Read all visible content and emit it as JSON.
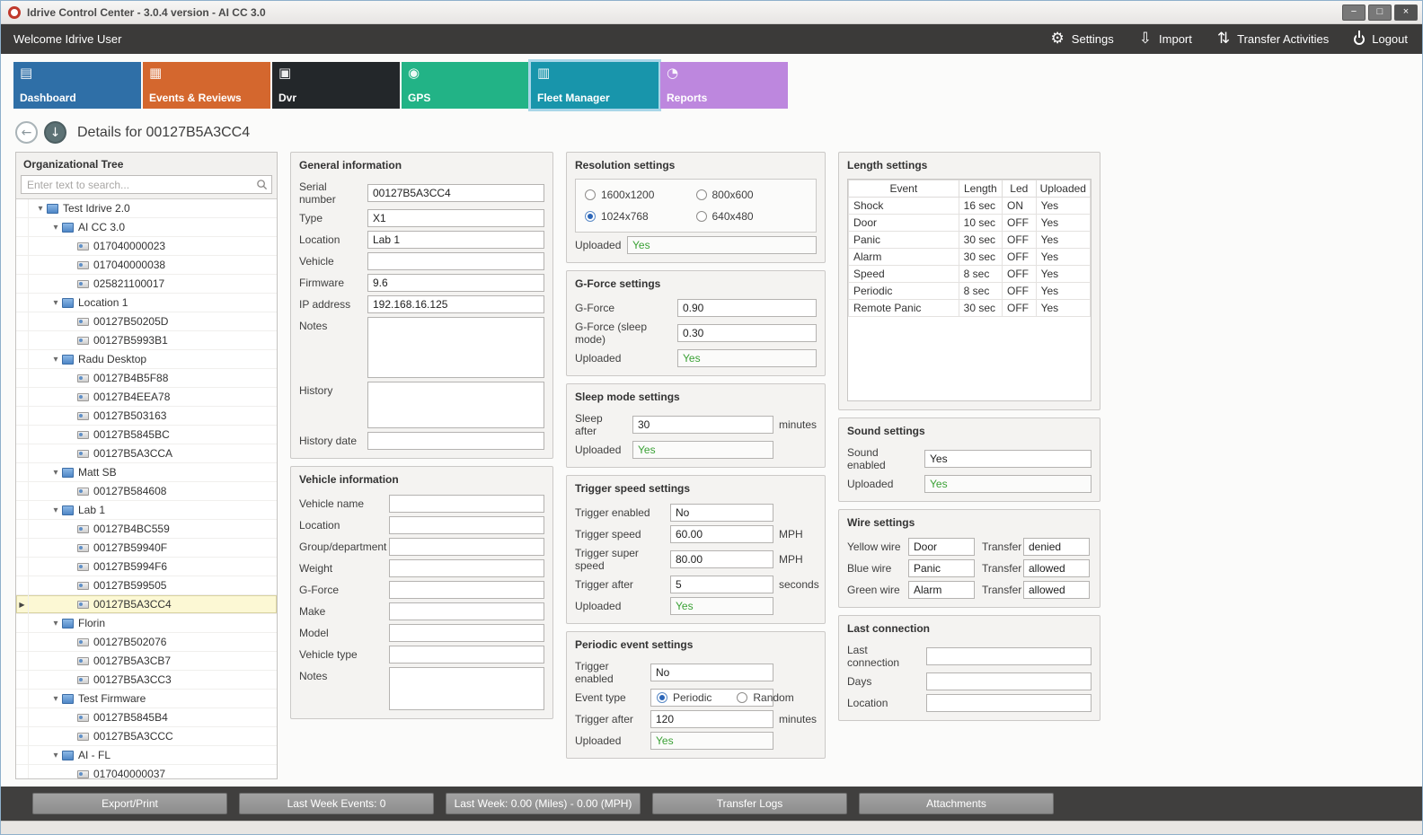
{
  "window": {
    "title": "Idrive Control Center - 3.0.4 version - AI CC 3.0",
    "controls": [
      "minimize",
      "maximize",
      "close"
    ]
  },
  "toolbar": {
    "welcome": "Welcome Idrive User",
    "actions": [
      {
        "label": "Settings",
        "icon": "settings-gears-icon"
      },
      {
        "label": "Import",
        "icon": "import-icon"
      },
      {
        "label": "Transfer Activities",
        "icon": "transfer-activities-icon"
      },
      {
        "label": "Logout",
        "icon": "logout-power-icon"
      }
    ]
  },
  "nav": {
    "tiles": [
      {
        "label": "Dashboard",
        "icon": "dashboard-icon",
        "color": "#2f6fa7",
        "selected": false
      },
      {
        "label": "Events & Reviews",
        "icon": "events-reviews-icon",
        "color": "#d4672e",
        "selected": false
      },
      {
        "label": "Dvr",
        "icon": "dvr-icon",
        "color": "#23272a",
        "selected": false
      },
      {
        "label": "GPS",
        "icon": "gps-pin-icon",
        "color": "#22b386",
        "selected": false
      },
      {
        "label": "Fleet Manager",
        "icon": "fleet-manager-icon",
        "color": "#1895ab",
        "selected": true
      },
      {
        "label": "Reports",
        "icon": "reports-pie-icon",
        "color": "#bd87de",
        "selected": false
      }
    ]
  },
  "page": {
    "title": "Details for 00127B5A3CC4"
  },
  "tree": {
    "title": "Organizational Tree",
    "search_placeholder": "Enter text to search...",
    "nodes": [
      {
        "label": "Test Idrive 2.0",
        "level": 0,
        "type": "group"
      },
      {
        "label": "AI CC 3.0",
        "level": 1,
        "type": "group"
      },
      {
        "label": "017040000023",
        "level": 2,
        "type": "device"
      },
      {
        "label": "017040000038",
        "level": 2,
        "type": "device"
      },
      {
        "label": "025821100017",
        "level": 2,
        "type": "device"
      },
      {
        "label": "Location 1",
        "level": 1,
        "type": "group"
      },
      {
        "label": "00127B50205D",
        "level": 2,
        "type": "device"
      },
      {
        "label": "00127B5993B1",
        "level": 2,
        "type": "device"
      },
      {
        "label": "Radu Desktop",
        "level": 1,
        "type": "group"
      },
      {
        "label": "00127B4B5F88",
        "level": 2,
        "type": "device"
      },
      {
        "label": "00127B4EEA78",
        "level": 2,
        "type": "device"
      },
      {
        "label": "00127B503163",
        "level": 2,
        "type": "device"
      },
      {
        "label": "00127B5845BC",
        "level": 2,
        "type": "device"
      },
      {
        "label": "00127B5A3CCA",
        "level": 2,
        "type": "device"
      },
      {
        "label": "Matt SB",
        "level": 1,
        "type": "group"
      },
      {
        "label": "00127B584608",
        "level": 2,
        "type": "device"
      },
      {
        "label": "Lab 1",
        "level": 1,
        "type": "group"
      },
      {
        "label": "00127B4BC559",
        "level": 2,
        "type": "device"
      },
      {
        "label": "00127B59940F",
        "level": 2,
        "type": "device"
      },
      {
        "label": "00127B5994F6",
        "level": 2,
        "type": "device"
      },
      {
        "label": "00127B599505",
        "level": 2,
        "type": "device"
      },
      {
        "label": "00127B5A3CC4",
        "level": 2,
        "type": "device",
        "selected": true
      },
      {
        "label": "Florin",
        "level": 1,
        "type": "group"
      },
      {
        "label": "00127B502076",
        "level": 2,
        "type": "device"
      },
      {
        "label": "00127B5A3CB7",
        "level": 2,
        "type": "device"
      },
      {
        "label": "00127B5A3CC3",
        "level": 2,
        "type": "device"
      },
      {
        "label": "Test Firmware",
        "level": 1,
        "type": "group"
      },
      {
        "label": "00127B5845B4",
        "level": 2,
        "type": "device"
      },
      {
        "label": "00127B5A3CCC",
        "level": 2,
        "type": "device"
      },
      {
        "label": "AI - FL",
        "level": 1,
        "type": "group"
      },
      {
        "label": "017040000037",
        "level": 2,
        "type": "device"
      }
    ]
  },
  "groups": {
    "general": {
      "title": "General information",
      "fields": [
        {
          "label": "Serial number",
          "value": "00127B5A3CC4",
          "type": "input"
        },
        {
          "label": "Type",
          "value": "X1",
          "type": "input"
        },
        {
          "label": "Location",
          "value": "Lab 1",
          "type": "input"
        },
        {
          "label": "Vehicle",
          "value": "",
          "type": "input"
        },
        {
          "label": "Firmware",
          "value": "9.6",
          "type": "input"
        },
        {
          "label": "IP address",
          "value": "192.168.16.125",
          "type": "input"
        },
        {
          "label": "Notes",
          "value": "",
          "type": "textarea"
        },
        {
          "label": "History",
          "value": "",
          "type": "textarea"
        },
        {
          "label": "History date",
          "value": "",
          "type": "input"
        }
      ]
    },
    "vehicle": {
      "title": "Vehicle information",
      "fields": [
        {
          "label": "Vehicle name",
          "value": "",
          "type": "input"
        },
        {
          "label": "Location",
          "value": "",
          "type": "input"
        },
        {
          "label": "Group/department",
          "value": "",
          "type": "input"
        },
        {
          "label": "Weight",
          "value": "",
          "type": "input"
        },
        {
          "label": "G-Force",
          "value": "",
          "type": "input"
        },
        {
          "label": "Make",
          "value": "",
          "type": "input"
        },
        {
          "label": "Model",
          "value": "",
          "type": "input"
        },
        {
          "label": "Vehicle type",
          "value": "",
          "type": "input"
        },
        {
          "label": "Notes",
          "value": "",
          "type": "textarea"
        }
      ]
    },
    "resolution": {
      "title": "Resolution settings",
      "radio_options": [
        {
          "label": "1600x1200",
          "checked": false
        },
        {
          "label": "800x600",
          "checked": false
        },
        {
          "label": "1024x768",
          "checked": true
        },
        {
          "label": "640x480",
          "checked": false
        }
      ],
      "fields": [
        {
          "label": "Uploaded",
          "value": "Yes",
          "type": "uploaded"
        }
      ]
    },
    "gforce": {
      "title": "G-Force settings",
      "fields": [
        {
          "label": "G-Force",
          "value": "0.90",
          "type": "input"
        },
        {
          "label": "G-Force (sleep mode)",
          "value": "0.30",
          "type": "input"
        },
        {
          "label": "Uploaded",
          "value": "Yes",
          "type": "uploaded"
        }
      ]
    },
    "sleep": {
      "title": "Sleep mode settings",
      "fields": [
        {
          "label": "Sleep after",
          "value": "30",
          "type": "input",
          "unit": "minutes"
        },
        {
          "label": "Uploaded",
          "value": "Yes",
          "type": "uploaded"
        }
      ]
    },
    "trigger_speed": {
      "title": "Trigger speed settings",
      "fields": [
        {
          "label": "Trigger enabled",
          "value": "No",
          "type": "input"
        },
        {
          "label": "Trigger speed",
          "value": "60.00",
          "type": "input",
          "unit": "MPH"
        },
        {
          "label": "Trigger super speed",
          "value": "80.00",
          "type": "input",
          "unit": "MPH"
        },
        {
          "label": "Trigger after",
          "value": "5",
          "type": "input",
          "unit": "seconds"
        },
        {
          "label": "Uploaded",
          "value": "Yes",
          "type": "uploaded"
        }
      ]
    },
    "periodic": {
      "title": "Periodic event settings",
      "fields": [
        {
          "label": "Trigger enabled",
          "value": "No",
          "type": "input"
        },
        {
          "label": "Event type",
          "type": "radiopair",
          "options": [
            {
              "label": "Periodic",
              "checked": true
            },
            {
              "label": "Random",
              "checked": false
            }
          ]
        },
        {
          "label": "Trigger after",
          "value": "120",
          "type": "input",
          "unit": "minutes"
        },
        {
          "label": "Uploaded",
          "value": "Yes",
          "type": "uploaded"
        }
      ]
    },
    "length": {
      "title": "Length settings",
      "headers": [
        "Event",
        "Length",
        "Led",
        "Uploaded"
      ],
      "rows": [
        [
          "Shock",
          "16 sec",
          "ON",
          "Yes"
        ],
        [
          "Door",
          "10 sec",
          "OFF",
          "Yes"
        ],
        [
          "Panic",
          "30 sec",
          "OFF",
          "Yes"
        ],
        [
          "Alarm",
          "30 sec",
          "OFF",
          "Yes"
        ],
        [
          "Speed",
          "8 sec",
          "OFF",
          "Yes"
        ],
        [
          "Periodic",
          "8 sec",
          "OFF",
          "Yes"
        ],
        [
          "Remote Panic",
          "30 sec",
          "OFF",
          "Yes"
        ]
      ]
    },
    "sound": {
      "title": "Sound settings",
      "fields": [
        {
          "label": "Sound enabled",
          "value": "Yes",
          "type": "input"
        },
        {
          "label": "Uploaded",
          "value": "Yes",
          "type": "uploaded"
        }
      ]
    },
    "wire": {
      "title": "Wire settings",
      "pairs": [
        {
          "label": "Yellow wire",
          "value": "Door",
          "label2": "Transfer",
          "value2": "denied"
        },
        {
          "label": "Blue wire",
          "value": "Panic",
          "label2": "Transfer",
          "value2": "allowed"
        },
        {
          "label": "Green wire",
          "value": "Alarm",
          "label2": "Transfer",
          "value2": "allowed"
        }
      ]
    },
    "last_connection": {
      "title": "Last connection",
      "fields": [
        {
          "label": "Last connection",
          "value": "",
          "type": "input"
        },
        {
          "label": "Days",
          "value": "",
          "type": "input"
        },
        {
          "label": "Location",
          "value": "",
          "type": "input"
        }
      ]
    }
  },
  "footer": {
    "buttons": [
      "Export/Print",
      "Last Week Events: 0",
      "Last Week: 0.00 (Miles) - 0.00 (MPH)",
      "Transfer Logs",
      "Attachments"
    ]
  },
  "colors": {
    "uploaded_green": "#3aa135",
    "selected_row": "#fcf8d4",
    "toolbar_dark": "#3b3a39",
    "selected_tile_border": "#a9d6e8"
  }
}
